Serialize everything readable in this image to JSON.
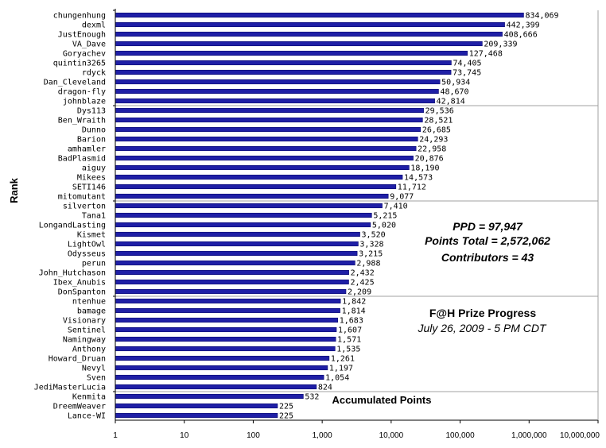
{
  "chart_data": {
    "type": "bar",
    "orientation": "horizontal",
    "x_scale": "log",
    "xlim": [
      1,
      10000000
    ],
    "x_ticks": [
      "1",
      "10",
      "100",
      "1,000",
      "10,000",
      "100,000",
      "1,000,000",
      "10,000,000"
    ],
    "ylabel": "Rank",
    "bar_color": "#1f1fa6",
    "bar_edge_color": "#0b0b6e",
    "grid": "group separators every 10 rows",
    "data_labels": true,
    "categories": [
      "chungenhung",
      "dexml",
      "JustEnough",
      "VA_Dave",
      "Goryachev",
      "quintin3265",
      "rdyck",
      "Dan_Cleveland",
      "dragon-fly",
      "johnblaze",
      "Dys113",
      "Ben_Wraith",
      "Dunno",
      "Barion",
      "amhamler",
      "BadPlasmid",
      "aiguy",
      "Mikees",
      "SETI146",
      "mitomutant",
      "silverton",
      "Tana1",
      "LongandLasting",
      "Kismet",
      "LightOwl",
      "Odysseus",
      "perun",
      "John_Hutchason",
      "Ibex_Anubis",
      "DonSpanton",
      "ntenhue",
      "bamage",
      "Visionary",
      "Sentinel",
      "Namingway",
      "Anthony",
      "Howard_Druan",
      "Nevyl",
      "Sven",
      "JediMasterLucia",
      "Kenmita",
      "DreemWeaver",
      "Lance-WI"
    ],
    "values": [
      834069,
      442399,
      408666,
      209339,
      127468,
      74405,
      73745,
      50934,
      48670,
      42814,
      29536,
      28521,
      26685,
      24293,
      22958,
      20876,
      18190,
      14573,
      11712,
      9077,
      7410,
      5215,
      5020,
      3520,
      3328,
      3215,
      2988,
      2432,
      2425,
      2209,
      1842,
      1814,
      1683,
      1607,
      1571,
      1535,
      1261,
      1197,
      1054,
      824,
      532,
      225,
      225
    ],
    "value_labels": [
      "834,069",
      "442,399",
      "408,666",
      "209,339",
      "127,468",
      "74,405",
      "73,745",
      "50,934",
      "48,670",
      "42,814",
      "29,536",
      "28,521",
      "26,685",
      "24,293",
      "22,958",
      "20,876",
      "18,190",
      "14,573",
      "11,712",
      "9,077",
      "7,410",
      "5,215",
      "5,020",
      "3,520",
      "3,328",
      "3,215",
      "2,988",
      "2,432",
      "2,425",
      "2,209",
      "1,842",
      "1,814",
      "1,683",
      "1,607",
      "1,571",
      "1,535",
      "1,261",
      "1,197",
      "1,054",
      "824",
      "532",
      "225",
      "225"
    ]
  },
  "annotations": {
    "ppd": "PPD = 97,947",
    "points_total": "Points Total = 2,572,062",
    "contributors": "Contributors = 43",
    "title": "F@H Prize Progress",
    "date": "July 26, 2009 - 5 PM CDT",
    "caption": "Accumulated Points"
  }
}
